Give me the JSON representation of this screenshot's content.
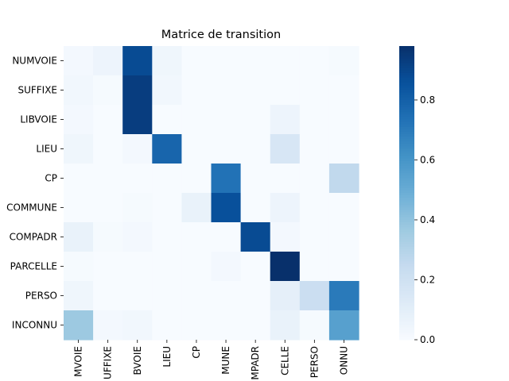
{
  "chart_data": {
    "type": "heatmap",
    "title": "Matrice de transition",
    "xlabel": "",
    "ylabel": "",
    "row_labels": [
      "NUMVOIE",
      "SUFFIXE",
      "LIBVOIE",
      "LIEU",
      "CP",
      "COMMUNE",
      "COMPADR",
      "PARCELLE",
      "PERSO",
      "INCONNU"
    ],
    "col_labels": [
      "MVOIE",
      "UFFIXE",
      "BVOIE",
      "LIEU",
      "CP",
      "MUNE",
      "MPADR",
      "CELLE",
      "PERSO",
      "ONNU"
    ],
    "values": [
      [
        0.02,
        0.05,
        0.88,
        0.04,
        0.0,
        0.0,
        0.0,
        0.0,
        0.0,
        0.01
      ],
      [
        0.03,
        0.01,
        0.93,
        0.03,
        0.0,
        0.0,
        0.0,
        0.0,
        0.0,
        0.0
      ],
      [
        0.02,
        0.0,
        0.93,
        0.0,
        0.0,
        0.0,
        0.0,
        0.05,
        0.0,
        0.0
      ],
      [
        0.04,
        0.0,
        0.02,
        0.78,
        0.0,
        0.0,
        0.0,
        0.16,
        0.0,
        0.0
      ],
      [
        0.0,
        0.0,
        0.0,
        0.0,
        0.0,
        0.73,
        0.0,
        0.0,
        0.0,
        0.26
      ],
      [
        0.0,
        0.0,
        0.01,
        0.0,
        0.07,
        0.86,
        0.0,
        0.05,
        0.0,
        0.0
      ],
      [
        0.07,
        0.01,
        0.02,
        0.0,
        0.0,
        0.0,
        0.88,
        0.02,
        0.0,
        0.0
      ],
      [
        0.01,
        0.0,
        0.0,
        0.0,
        0.0,
        0.02,
        0.0,
        0.98,
        0.0,
        0.0
      ],
      [
        0.04,
        0.0,
        0.0,
        0.0,
        0.0,
        0.0,
        0.0,
        0.09,
        0.22,
        0.7
      ],
      [
        0.37,
        0.02,
        0.03,
        0.0,
        0.0,
        0.0,
        0.0,
        0.07,
        0.01,
        0.55
      ]
    ],
    "colormap": "Blues",
    "colorbar": {
      "min": 0.0,
      "max": 0.98,
      "ticks": [
        "0.0",
        "0.2",
        "0.4",
        "0.6",
        "0.8"
      ]
    },
    "grid": false
  }
}
